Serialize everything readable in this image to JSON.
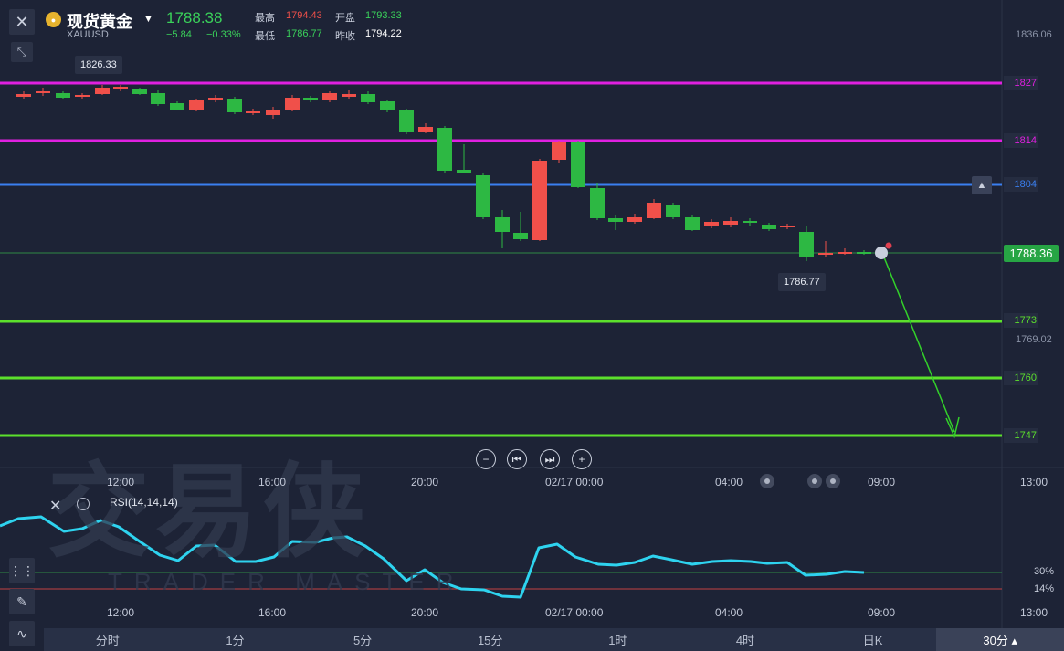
{
  "header": {
    "close_icon": "close-icon",
    "expand_icon": "collapse-arrows-icon",
    "symbol_name": "现货黄金",
    "symbol_code": "XAUUSD",
    "price": "1788.38",
    "change": "−5.84",
    "change_pct": "−0.33%",
    "high_label": "最高",
    "high_value": "1794.43",
    "open_label": "开盘",
    "open_value": "1793.33",
    "low_label": "最低",
    "low_value": "1786.77",
    "prev_close_label": "昨收",
    "prev_close_value": "1794.22"
  },
  "chart": {
    "max_tag": "1826.33",
    "min_tag": "1786.77",
    "current_price_tag": "1788.36",
    "axis_top": "1836.06",
    "axis_mid": "1769.02",
    "levels": [
      {
        "label": "1827",
        "color": "#e020e0"
      },
      {
        "label": "1814",
        "color": "#e020e0"
      },
      {
        "label": "1804",
        "color": "#3a7ff0"
      },
      {
        "label": "1773",
        "color": "#5ce02c"
      },
      {
        "label": "1760",
        "color": "#5ce02c"
      },
      {
        "label": "1747",
        "color": "#5ce02c"
      }
    ],
    "time_labels": [
      "12:00",
      "16:00",
      "20:00",
      "02/17 00:00",
      "04:00",
      "09:00",
      "13:00"
    ],
    "colors": {
      "up": "#f0504a",
      "down": "#2db843",
      "rsi": "#2ed3ef",
      "arrow": "#33d12a"
    }
  },
  "controls": {
    "zoom_out_icon": "minus-circle-icon",
    "prev_icon": "skip-back-icon",
    "next_icon": "skip-forward-icon",
    "zoom_in_icon": "plus-circle-icon"
  },
  "watermark": {
    "cn": "交易侠",
    "en": "TRADER MASTER"
  },
  "rsi": {
    "label": "RSI(14,14,14)",
    "level_high": "30%",
    "level_low": "14%"
  },
  "tabs": [
    {
      "label": "分时",
      "active": false
    },
    {
      "label": "1分",
      "active": false
    },
    {
      "label": "5分",
      "active": false
    },
    {
      "label": "15分",
      "active": false
    },
    {
      "label": "1时",
      "active": false
    },
    {
      "label": "4时",
      "active": false
    },
    {
      "label": "日K",
      "active": false
    },
    {
      "label": "30分 ▴",
      "active": true
    }
  ]
}
